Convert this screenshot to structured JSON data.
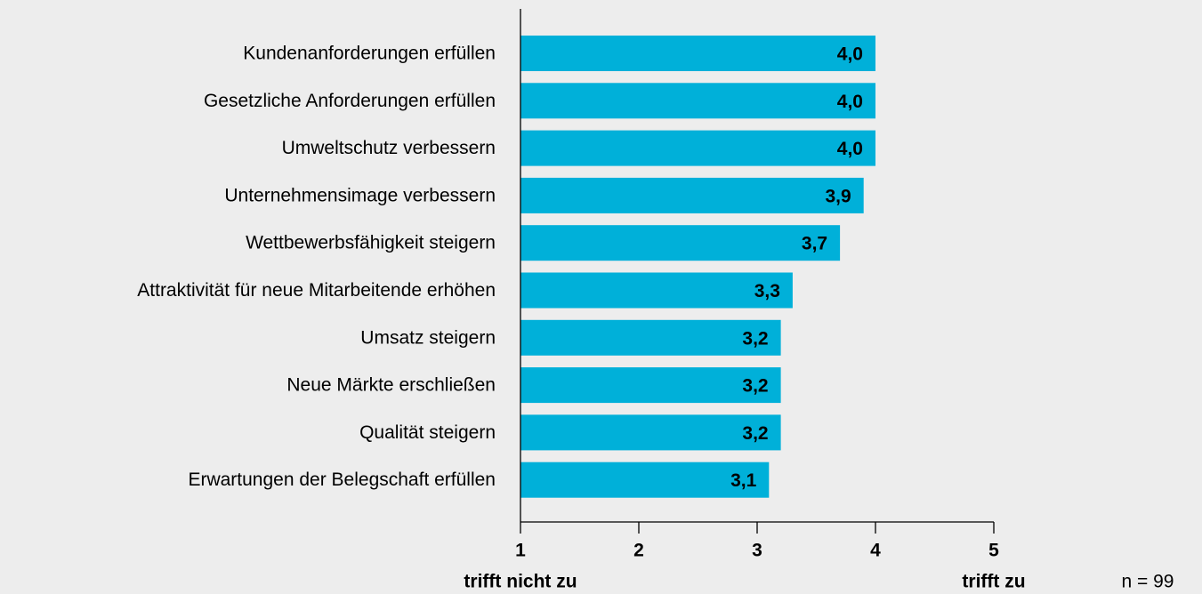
{
  "chart_data": {
    "type": "bar",
    "orientation": "horizontal",
    "categories": [
      "Kundenanforderungen erfüllen",
      "Gesetzliche Anforderungen erfüllen",
      "Umweltschutz verbessern",
      "Unternehmensimage verbessern",
      "Wettbewerbsfähigkeit steigern",
      "Attraktivität für neue Mitarbeitende erhöhen",
      "Umsatz steigern",
      "Neue Märkte erschließen",
      "Qualität steigern",
      "Erwartungen der Belegschaft erfüllen"
    ],
    "values": [
      4.0,
      4.0,
      4.0,
      3.9,
      3.7,
      3.3,
      3.2,
      3.2,
      3.2,
      3.1
    ],
    "value_labels": [
      "4,0",
      "4,0",
      "4,0",
      "3,9",
      "3,7",
      "3,3",
      "3,2",
      "3,2",
      "3,2",
      "3,1"
    ],
    "color": "#00b0d9",
    "xlim": [
      1,
      5
    ],
    "xticks": [
      1,
      2,
      3,
      4,
      5
    ],
    "scale_labels": [
      "trifft nicht zu",
      "trifft zu"
    ],
    "note": "n = 99"
  }
}
